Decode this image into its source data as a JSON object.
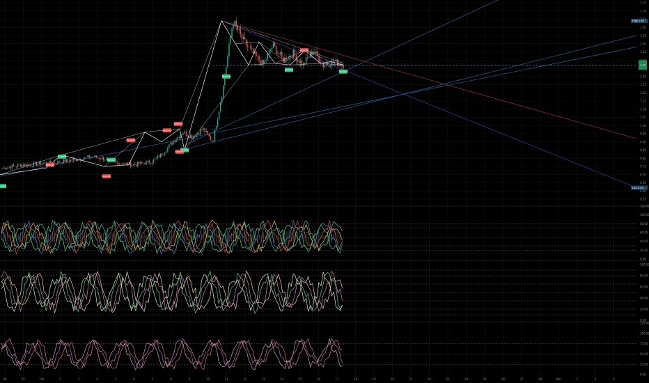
{
  "colors": {
    "background": "#000000",
    "grid": "#151515",
    "candle_up": "#26a69a",
    "candle_down": "#ef5350",
    "zigzag": "#e8e8e8",
    "trendline_blue": "#1e5a8a",
    "trendline_red": "#8a2a3a",
    "trendline_purple": "#4a2a8a",
    "support_dash": "#5aa0c8",
    "bull_badge": "#26c281",
    "bear_badge": "#e04848",
    "price_axis_text": "#8a8a8a"
  },
  "price_scale": {
    "ticks": [
      "1.75",
      "1.70",
      "1.65",
      "1.60",
      "1.55",
      "1.50",
      "1.45",
      "1.40",
      "1.35",
      "1.30",
      "1.25",
      "1.20",
      "1.15",
      "1.10",
      "1.05",
      "1.00",
      "0.95",
      "0.90",
      "0.85",
      "0.80",
      "0.75",
      "0.70",
      "0.65",
      "0.60",
      "0.55"
    ],
    "high_label": "High",
    "high_value": "1.64",
    "low_label": "Low",
    "low_value": "0.62",
    "last_value": "1.37"
  },
  "time_axis": {
    "labels": [
      "30",
      "31",
      "Feb",
      "2",
      "3",
      "4",
      "5",
      "6",
      "7",
      "8",
      "9",
      "10",
      "11",
      "12",
      "13",
      "14",
      "15",
      "16",
      "17",
      "18",
      "19",
      "20",
      "21",
      "22",
      "23",
      "24",
      "25",
      "26",
      "27",
      "28",
      "Mar",
      "2",
      "3",
      "4"
    ]
  },
  "osc1": {
    "ticks": [
      "120.00",
      "100.00",
      "80.00",
      "60.00",
      "40.00",
      "20.00",
      "0.00"
    ],
    "levels": [
      80,
      70,
      50,
      30,
      20
    ]
  },
  "osc2": {
    "ticks": [
      "100.00",
      "80.00",
      "60.00",
      "40.00",
      "20.00",
      "0.00"
    ],
    "levels": [
      90,
      80,
      65,
      50,
      35,
      20,
      10
    ]
  },
  "osc3": {
    "ticks": [
      "125.00",
      "100.00",
      "75.00",
      "50.00",
      "25.00",
      "0.00"
    ],
    "levels": [
      75,
      50,
      25
    ]
  },
  "chart_data": {
    "type": "line",
    "title": "",
    "xlabel": "",
    "ylabel": "",
    "ylim": [
      0.55,
      1.75
    ],
    "series": [
      {
        "values": [
          0.74,
          0.75,
          0.76,
          0.76,
          0.77,
          0.77,
          0.78,
          0.79,
          0.8,
          0.81,
          0.8,
          0.78,
          0.77,
          0.76,
          0.77,
          0.78,
          0.83,
          0.9,
          0.96,
          0.93,
          0.98,
          0.9,
          1.22,
          1.64,
          1.52,
          1.44,
          1.37,
          1.49,
          1.4,
          1.44,
          1.37,
          1.46,
          1.37,
          1.39,
          1.37
        ]
      }
    ],
    "pattern_labels": [
      "Bullish",
      "Bearish",
      "Bullish",
      "Bearish",
      "Bullish",
      "Bearish",
      "Bearish",
      "Bearish",
      "Bullish",
      "Bearish",
      "Bullish",
      "Bullish",
      "Bearish",
      "Bullish"
    ]
  }
}
